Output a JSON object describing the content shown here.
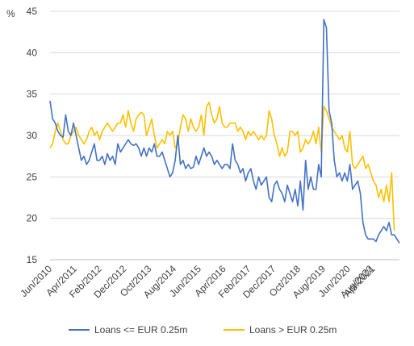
{
  "chart_data": {
    "type": "line",
    "ylabel": "%",
    "ylim": [
      15,
      45
    ],
    "yticks": [
      "15",
      "20",
      "25",
      "30",
      "35",
      "40",
      "45"
    ],
    "xticks": [
      "Jun/2010",
      "Apr/2011",
      "Feb/2012",
      "Dec/2012",
      "Oct/2013",
      "Aug/2014",
      "Jun/2015",
      "Apr/2016",
      "Feb/2017",
      "Dec/2017",
      "Oct/2018",
      "Aug/2019",
      "Jun/2020",
      "Apr/2021",
      "Aug/2022"
    ],
    "grid": true,
    "legend_position": "bottom",
    "colors": {
      "series1": "#4472C4",
      "series2": "#FFC000"
    },
    "series": [
      {
        "name": "Loans <= EUR 0.25m",
        "values": [
          34.2,
          32.0,
          31.5,
          30.5,
          30.0,
          29.8,
          32.5,
          30.5,
          30.0,
          31.5,
          30.0,
          28.5,
          27.0,
          27.5,
          26.5,
          27.0,
          28.0,
          29.0,
          27.0,
          27.0,
          27.5,
          26.5,
          27.8,
          27.0,
          27.5,
          26.5,
          29.0,
          28.0,
          28.5,
          29.0,
          29.5,
          29.0,
          28.8,
          29.0,
          28.5,
          27.5,
          28.5,
          27.5,
          28.5,
          28.0,
          29.0,
          27.5,
          27.5,
          28.0,
          27.0,
          26.0,
          25.0,
          25.5,
          27.0,
          30.0,
          26.5,
          27.0,
          26.0,
          26.5,
          26.0,
          26.2,
          27.5,
          26.5,
          27.5,
          28.5,
          27.5,
          28.0,
          27.5,
          26.5,
          27.0,
          26.5,
          26.0,
          26.5,
          26.5,
          26.0,
          29.0,
          27.0,
          26.5,
          25.5,
          26.0,
          24.5,
          25.5,
          26.0,
          24.5,
          23.5,
          25.0,
          24.0,
          24.5,
          25.0,
          22.5,
          22.0,
          24.0,
          24.5,
          23.5,
          23.0,
          22.0,
          24.0,
          23.0,
          22.0,
          23.5,
          21.5,
          24.5,
          21.0,
          27.0,
          23.5,
          25.0,
          23.5,
          23.5,
          26.5,
          25.0,
          44.0,
          43.0,
          33.0,
          31.5,
          27.0,
          25.0,
          25.5,
          24.5,
          25.5,
          24.5,
          26.5,
          23.5,
          24.0,
          24.5,
          23.0,
          19.5,
          18.0,
          17.5,
          17.5,
          17.5,
          17.2,
          18.0,
          18.5,
          19.0,
          18.5,
          19.5,
          18.0,
          18.0,
          17.5,
          17.0
        ]
      },
      {
        "name": "Loans > EUR 0.25m",
        "values": [
          28.5,
          29.0,
          30.5,
          31.5,
          30.5,
          29.5,
          29.0,
          29.0,
          30.0,
          30.5,
          31.0,
          30.0,
          29.5,
          29.0,
          29.5,
          30.5,
          31.0,
          30.0,
          30.5,
          29.5,
          30.5,
          31.0,
          31.5,
          31.0,
          30.5,
          31.0,
          31.5,
          31.5,
          32.5,
          31.0,
          33.0,
          31.5,
          30.5,
          32.0,
          32.5,
          32.8,
          32.5,
          30.0,
          31.0,
          32.0,
          30.0,
          28.5,
          29.0,
          29.5,
          29.0,
          30.5,
          30.0,
          30.5,
          28.5,
          29.0,
          31.0,
          32.5,
          32.0,
          30.5,
          32.0,
          31.0,
          30.5,
          31.0,
          32.5,
          30.0,
          33.5,
          34.0,
          32.5,
          31.5,
          32.0,
          33.5,
          31.5,
          31.0,
          31.0,
          31.5,
          31.5,
          31.5,
          30.5,
          31.0,
          30.5,
          29.5,
          30.5,
          30.0,
          30.5,
          30.0,
          29.5,
          30.0,
          29.5,
          30.0,
          33.0,
          32.0,
          30.0,
          29.0,
          27.5,
          28.5,
          27.5,
          28.0,
          30.5,
          30.5,
          30.0,
          30.5,
          28.0,
          28.5,
          29.5,
          29.0,
          29.5,
          30.5,
          29.0,
          31.0,
          28.0,
          33.5,
          33.0,
          32.0,
          31.0,
          30.5,
          30.0,
          29.5,
          30.0,
          28.5,
          28.0,
          30.5,
          26.5,
          26.0,
          26.5,
          27.0,
          27.5,
          26.0,
          26.5,
          25.5,
          24.5,
          24.0,
          22.5,
          23.5,
          22.0,
          24.0,
          22.0,
          25.5,
          18.5
        ]
      }
    ]
  }
}
